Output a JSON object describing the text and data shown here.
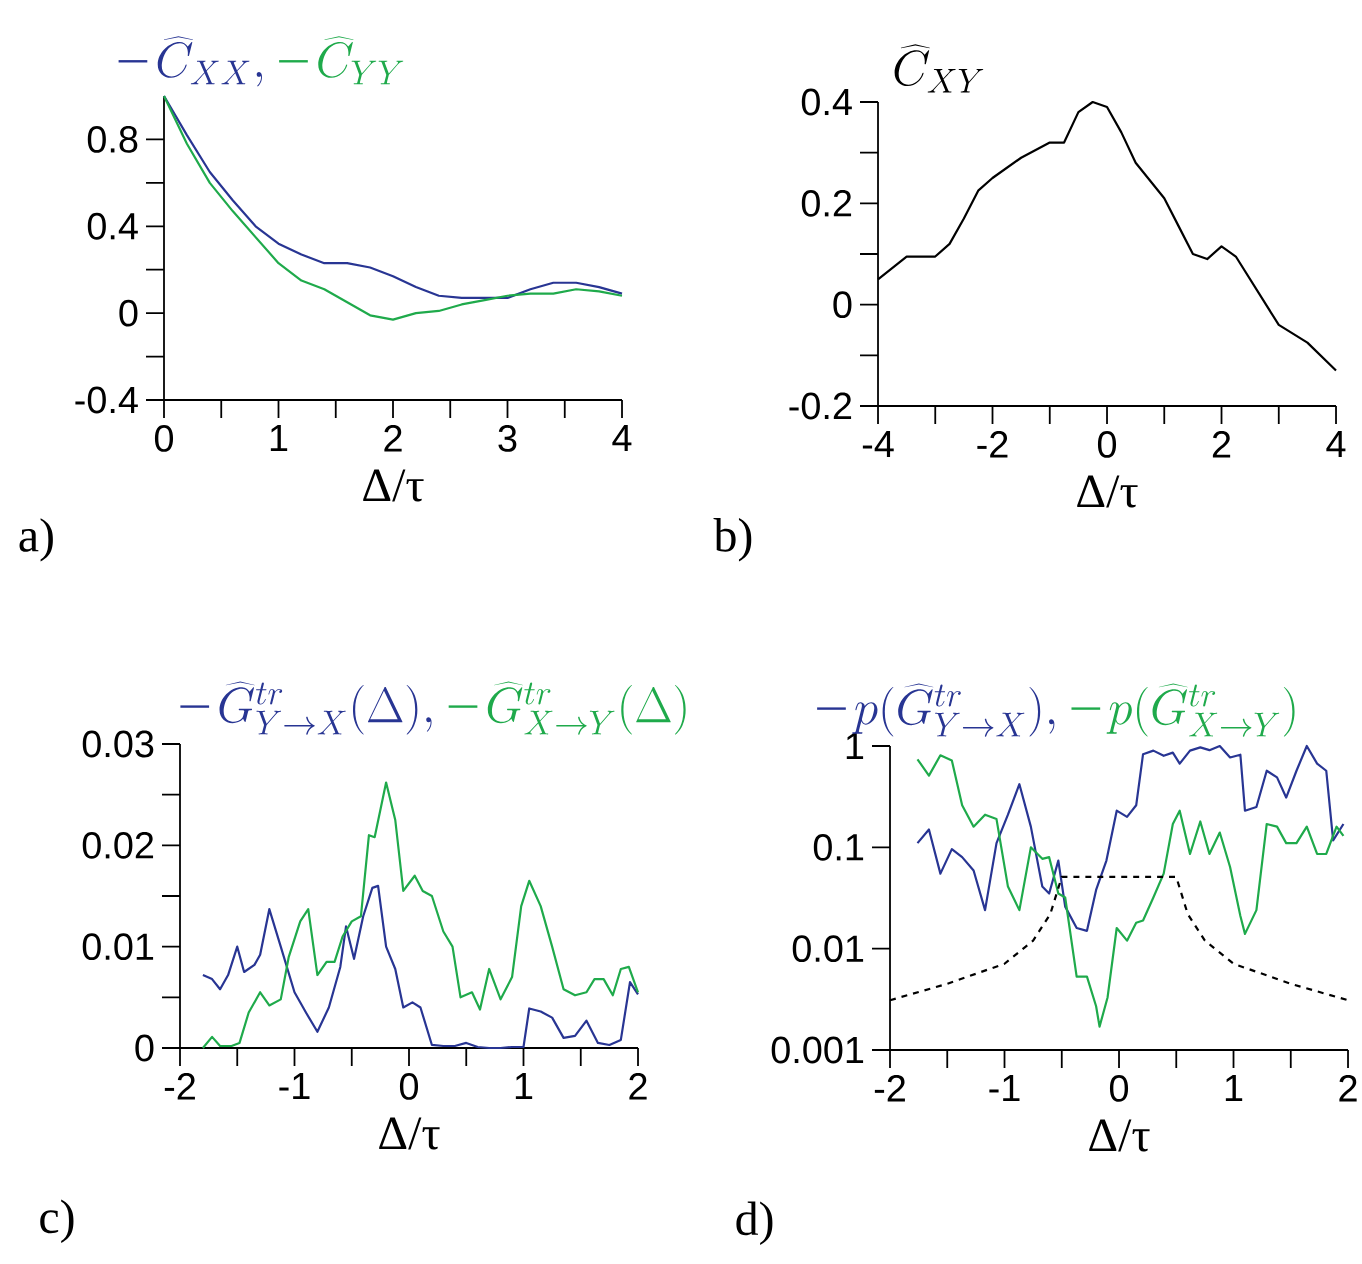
{
  "chart_data": [
    {
      "type": "line",
      "legend": "top",
      "xlabel": "Δ/τ",
      "annotations": [
        "a)"
      ],
      "xlim": [
        0,
        4
      ],
      "ylim": [
        -0.4,
        1.0
      ],
      "xticks": [
        0,
        {
          "value": 0.5,
          "label": null
        },
        1,
        {
          "value": 1.5,
          "label": null
        },
        2,
        {
          "value": 2.5,
          "label": null
        },
        3,
        {
          "value": 3.5,
          "label": null
        },
        4
      ],
      "yticks": [
        -0.4,
        {
          "value": -0.2,
          "label": null
        },
        0,
        {
          "value": 0.2,
          "label": null
        },
        0.4,
        {
          "value": 0.6,
          "label": null
        },
        0.8
      ],
      "x": [
        0,
        0.2,
        0.4,
        0.6,
        0.8,
        1.0,
        1.2,
        1.4,
        1.6,
        1.8,
        2.0,
        2.2,
        2.4,
        2.6,
        2.8,
        3.0,
        3.2,
        3.4,
        3.6,
        3.8,
        4.0
      ],
      "series": [
        {
          "name": "\\widehat{C}_{XX},",
          "color": "#283593",
          "values": [
            1.0,
            0.82,
            0.65,
            0.52,
            0.4,
            0.32,
            0.27,
            0.23,
            0.23,
            0.21,
            0.17,
            0.12,
            0.08,
            0.07,
            0.07,
            0.07,
            0.11,
            0.14,
            0.14,
            0.12,
            0.09
          ]
        },
        {
          "name": "\\widehat{C}_{YY}",
          "color": "#1faa4b",
          "values": [
            1.0,
            0.78,
            0.6,
            0.47,
            0.35,
            0.23,
            0.15,
            0.11,
            0.05,
            -0.01,
            -0.03,
            0.0,
            0.01,
            0.04,
            0.06,
            0.08,
            0.09,
            0.09,
            0.11,
            0.1,
            0.08
          ]
        }
      ]
    },
    {
      "type": "line",
      "title": "\\widehat{C}_{XY}",
      "xlabel": "Δ/τ",
      "annotations": [
        "b)"
      ],
      "xlim": [
        -4,
        4
      ],
      "ylim": [
        -0.2,
        0.4
      ],
      "xticks": [
        -4,
        {
          "value": -3,
          "label": null
        },
        -2,
        {
          "value": -1,
          "label": null
        },
        0,
        {
          "value": 1,
          "label": null
        },
        2,
        {
          "value": 3,
          "label": null
        },
        4
      ],
      "yticks": [
        -0.2,
        {
          "value": -0.1,
          "label": null
        },
        0,
        {
          "value": 0.1,
          "label": null
        },
        0.2,
        {
          "value": 0.3,
          "label": null
        },
        0.4
      ],
      "x": [
        -4,
        -3.5,
        -3,
        -2.75,
        -2.5,
        -2.25,
        -2,
        -1.5,
        -1,
        -0.75,
        -0.5,
        -0.25,
        0,
        0.25,
        0.5,
        1,
        1.25,
        1.5,
        1.75,
        2,
        2.25,
        2.5,
        3,
        3.5,
        4
      ],
      "series": [
        {
          "color": "#000000",
          "values": [
            0.05,
            0.095,
            0.095,
            0.12,
            0.17,
            0.225,
            0.25,
            0.29,
            0.32,
            0.32,
            0.38,
            0.4,
            0.39,
            0.34,
            0.28,
            0.21,
            0.155,
            0.1,
            0.09,
            0.115,
            0.095,
            0.05,
            -0.04,
            -0.075,
            -0.13
          ]
        }
      ]
    },
    {
      "type": "line",
      "legend": "top",
      "xlabel": "Δ/τ",
      "annotations": [
        "c)"
      ],
      "xlim": [
        -2,
        2
      ],
      "ylim": [
        0,
        0.03
      ],
      "xticks": [
        -2,
        {
          "value": -1.5,
          "label": null
        },
        -1,
        {
          "value": -0.5,
          "label": null
        },
        0,
        {
          "value": 0.5,
          "label": null
        },
        1,
        {
          "value": 1.5,
          "label": null
        },
        2
      ],
      "yticks": [
        0,
        {
          "value": 0.005,
          "label": null
        },
        0.01,
        {
          "value": 0.015,
          "label": null
        },
        0.02,
        {
          "value": 0.025,
          "label": null
        },
        0.03
      ],
      "series": [
        {
          "name": "\\widehat{G}^{tr}_{Y\\to X}(\\Delta),",
          "color": "#283593",
          "x": [
            -1.8,
            -1.72,
            -1.65,
            -1.58,
            -1.5,
            -1.44,
            -1.35,
            -1.3,
            -1.22,
            -1.12,
            -1.0,
            -0.9,
            -0.8,
            -0.7,
            -0.6,
            -0.55,
            -0.48,
            -0.4,
            -0.32,
            -0.27,
            -0.2,
            -0.12,
            -0.05,
            0.03,
            0.1,
            0.2,
            0.3,
            0.4,
            0.5,
            0.6,
            0.7,
            0.8,
            0.9,
            1.0,
            1.05,
            1.15,
            1.25,
            1.35,
            1.45,
            1.55,
            1.65,
            1.75,
            1.85,
            1.93,
            2.0
          ],
          "values": [
            0.0072,
            0.0068,
            0.0058,
            0.0072,
            0.01,
            0.0075,
            0.0082,
            0.0092,
            0.0137,
            0.01,
            0.0055,
            0.0035,
            0.0016,
            0.004,
            0.008,
            0.012,
            0.0088,
            0.013,
            0.0158,
            0.016,
            0.01,
            0.0078,
            0.004,
            0.0045,
            0.004,
            0.0003,
            0.0002,
            0.0002,
            0.0005,
            0.0001,
            0.0,
            0.0,
            0.0001,
            0.0001,
            0.0039,
            0.0036,
            0.003,
            0.001,
            0.0012,
            0.0027,
            0.0005,
            0.0003,
            0.0008,
            0.0065,
            0.0053
          ]
        },
        {
          "name": "\\widehat{G}^{tr}_{X\\to Y}(\\Delta)",
          "color": "#1faa4b",
          "x": [
            -1.8,
            -1.72,
            -1.65,
            -1.55,
            -1.48,
            -1.4,
            -1.3,
            -1.22,
            -1.12,
            -1.05,
            -0.95,
            -0.88,
            -0.8,
            -0.72,
            -0.65,
            -0.58,
            -0.5,
            -0.42,
            -0.35,
            -0.3,
            -0.2,
            -0.12,
            -0.05,
            0.05,
            0.12,
            0.2,
            0.3,
            0.38,
            0.45,
            0.55,
            0.62,
            0.7,
            0.8,
            0.9,
            0.98,
            1.05,
            1.15,
            1.25,
            1.35,
            1.45,
            1.55,
            1.62,
            1.7,
            1.78,
            1.85,
            1.92,
            2.0
          ],
          "values": [
            0.0,
            0.0011,
            0.0002,
            0.0002,
            0.0005,
            0.0035,
            0.0055,
            0.0042,
            0.0048,
            0.009,
            0.0125,
            0.0137,
            0.0072,
            0.0085,
            0.0085,
            0.011,
            0.0125,
            0.013,
            0.021,
            0.0208,
            0.0262,
            0.0225,
            0.0155,
            0.017,
            0.0155,
            0.015,
            0.0115,
            0.01,
            0.005,
            0.0055,
            0.0038,
            0.0078,
            0.0048,
            0.007,
            0.014,
            0.0165,
            0.014,
            0.01,
            0.0058,
            0.0052,
            0.0055,
            0.0068,
            0.0068,
            0.0052,
            0.0078,
            0.008,
            0.0055
          ]
        }
      ]
    },
    {
      "type": "line",
      "legend": "top",
      "log": "y",
      "xlabel": "Δ/τ",
      "annotations": [
        "d)"
      ],
      "xlim": [
        -2,
        2
      ],
      "ylim": [
        0.001,
        1
      ],
      "xticks": [
        -2,
        {
          "value": -1.5,
          "label": null
        },
        -1,
        {
          "value": -0.5,
          "label": null
        },
        0,
        {
          "value": 0.5,
          "label": null
        },
        1,
        {
          "value": 1.5,
          "label": null
        },
        2
      ],
      "yticks": [
        0.001,
        0.01,
        0.1,
        1
      ],
      "series": [
        {
          "name": "p(\\widehat{G}^{tr}_{Y\\to X}),",
          "color": "#283593",
          "x": [
            -1.76,
            -1.66,
            -1.56,
            -1.46,
            -1.37,
            -1.27,
            -1.17,
            -1.07,
            -0.97,
            -0.87,
            -0.77,
            -0.67,
            -0.61,
            -0.53,
            -0.47,
            -0.37,
            -0.28,
            -0.2,
            -0.11,
            -0.02,
            0.07,
            0.15,
            0.21,
            0.3,
            0.39,
            0.47,
            0.53,
            0.62,
            0.71,
            0.79,
            0.88,
            0.97,
            1.06,
            1.1,
            1.2,
            1.29,
            1.38,
            1.46,
            1.55,
            1.64,
            1.73,
            1.81,
            1.87,
            1.96
          ],
          "values": [
            0.11,
            0.15,
            0.055,
            0.096,
            0.08,
            0.059,
            0.024,
            0.11,
            0.21,
            0.42,
            0.16,
            0.041,
            0.035,
            0.074,
            0.026,
            0.016,
            0.015,
            0.038,
            0.074,
            0.23,
            0.2,
            0.26,
            0.83,
            0.9,
            0.8,
            0.86,
            0.67,
            0.9,
            0.97,
            0.91,
            1.0,
            0.77,
            0.82,
            0.23,
            0.25,
            0.57,
            0.49,
            0.31,
            0.57,
            1.0,
            0.67,
            0.57,
            0.117,
            0.17
          ]
        },
        {
          "name": "p(\\widehat{G}^{tr}_{X\\to Y})",
          "color": "#1faa4b",
          "x": [
            -1.76,
            -1.66,
            -1.56,
            -1.46,
            -1.37,
            -1.27,
            -1.17,
            -1.07,
            -0.97,
            -0.87,
            -0.77,
            -0.67,
            -0.61,
            -0.53,
            -0.47,
            -0.37,
            -0.28,
            -0.2,
            -0.17,
            -0.1,
            -0.02,
            0.07,
            0.15,
            0.21,
            0.3,
            0.39,
            0.47,
            0.53,
            0.62,
            0.71,
            0.79,
            0.88,
            0.97,
            1.06,
            1.1,
            1.2,
            1.29,
            1.38,
            1.46,
            1.55,
            1.64,
            1.73,
            1.81,
            1.9,
            1.96
          ],
          "values": [
            0.74,
            0.51,
            0.81,
            0.72,
            0.26,
            0.16,
            0.21,
            0.19,
            0.041,
            0.024,
            0.1,
            0.077,
            0.08,
            0.035,
            0.032,
            0.0053,
            0.0053,
            0.0027,
            0.0017,
            0.0033,
            0.016,
            0.012,
            0.018,
            0.019,
            0.032,
            0.055,
            0.17,
            0.23,
            0.086,
            0.18,
            0.086,
            0.14,
            0.064,
            0.021,
            0.014,
            0.024,
            0.17,
            0.16,
            0.11,
            0.11,
            0.16,
            0.086,
            0.086,
            0.16,
            0.13
          ]
        },
        {
          "color": "#000000",
          "line_style": "dashed",
          "x": [
            -2,
            -1.5,
            -1,
            -0.75,
            -0.6,
            -0.5,
            0.5,
            0.6,
            0.75,
            1,
            1.5,
            2
          ],
          "values": [
            0.0031,
            0.0045,
            0.0071,
            0.012,
            0.022,
            0.051,
            0.051,
            0.022,
            0.012,
            0.0071,
            0.0045,
            0.0031
          ]
        }
      ]
    }
  ]
}
